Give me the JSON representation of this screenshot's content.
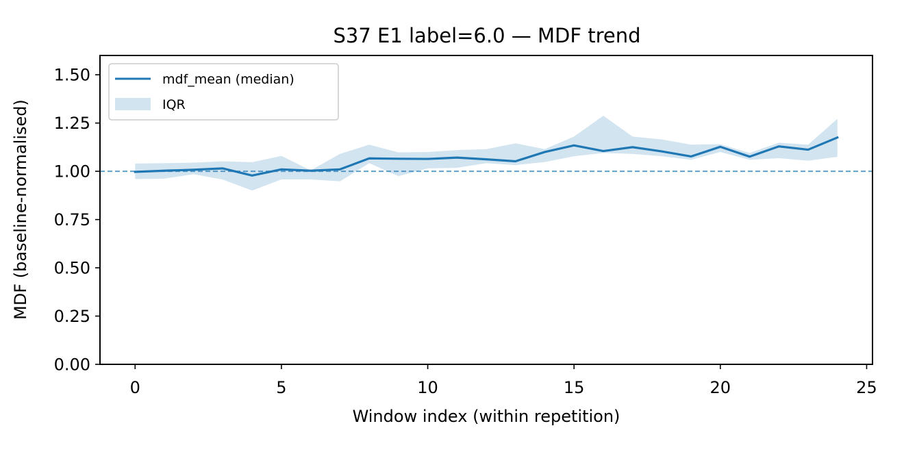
{
  "chart_data": {
    "type": "line",
    "title": "S37 E1 label=6.0 — MDF trend",
    "xlabel": "Window index (within repetition)",
    "ylabel": "MDF (baseline-normalised)",
    "xlim": [
      -1.2,
      25.2
    ],
    "ylim": [
      0,
      1.6
    ],
    "xticks": [
      0,
      5,
      10,
      15,
      20,
      25
    ],
    "xtick_labels": [
      "0",
      "5",
      "10",
      "15",
      "20",
      "25"
    ],
    "yticks": [
      0,
      0.25,
      0.5,
      0.75,
      1.0,
      1.25,
      1.5
    ],
    "ytick_labels": [
      "0.00",
      "0.25",
      "0.50",
      "0.75",
      "1.00",
      "1.25",
      "1.50"
    ],
    "grid": false,
    "legend_position": "upper-left",
    "x": [
      0,
      1,
      2,
      3,
      4,
      5,
      6,
      7,
      8,
      9,
      10,
      11,
      12,
      13,
      14,
      15,
      16,
      17,
      18,
      19,
      20,
      21,
      22,
      23,
      24
    ],
    "series": [
      {
        "name": "mdf_mean (median)",
        "kind": "line",
        "color": "#1f77b4",
        "values": [
          0.997,
          1.003,
          1.008,
          1.015,
          0.978,
          1.01,
          1.003,
          1.01,
          1.067,
          1.065,
          1.064,
          1.071,
          1.062,
          1.052,
          1.1,
          1.134,
          1.105,
          1.125,
          1.103,
          1.077,
          1.127,
          1.076,
          1.129,
          1.112,
          1.175
        ]
      },
      {
        "name": "IQR",
        "kind": "band",
        "color": "#1f77b4",
        "alpha": 0.2,
        "upper": [
          1.04,
          1.042,
          1.045,
          1.052,
          1.047,
          1.08,
          1.005,
          1.09,
          1.138,
          1.098,
          1.1,
          1.11,
          1.115,
          1.145,
          1.115,
          1.18,
          1.288,
          1.18,
          1.165,
          1.138,
          1.14,
          1.095,
          1.148,
          1.138,
          1.272
        ],
        "lower": [
          0.96,
          0.962,
          0.985,
          0.957,
          0.9,
          0.958,
          0.958,
          0.948,
          1.042,
          0.975,
          1.015,
          1.018,
          1.042,
          1.032,
          1.048,
          1.078,
          1.095,
          1.09,
          1.078,
          1.06,
          1.1,
          1.06,
          1.068,
          1.055,
          1.075
        ]
      }
    ],
    "reference_line": {
      "y": 1.0,
      "style": "dashed",
      "color": "#1f77b4"
    }
  }
}
